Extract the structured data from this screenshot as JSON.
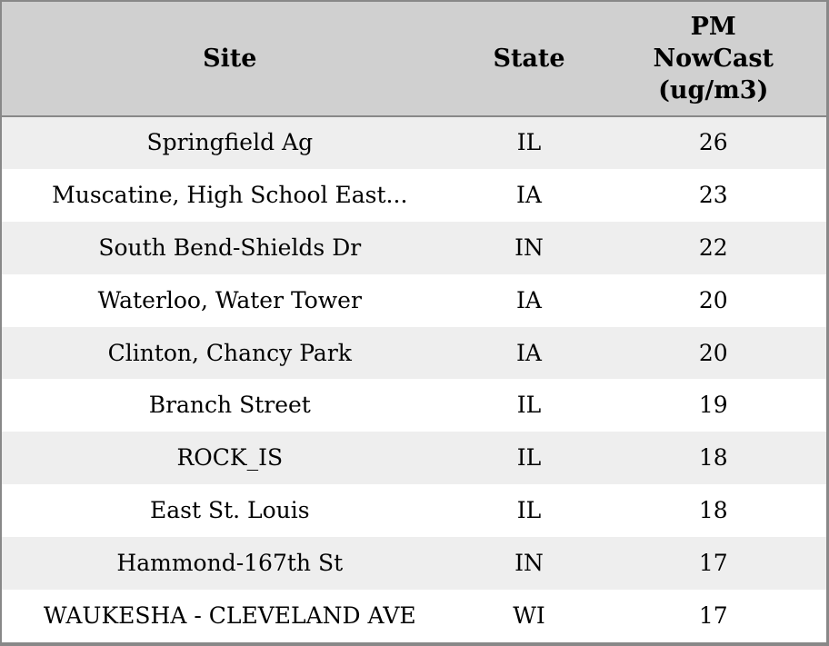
{
  "colors": {
    "header_bg": "#d0d0d0",
    "row_alt_bg": "#eeeeee",
    "row_bg": "#ffffff",
    "border": "#888888",
    "text": "#000000"
  },
  "chart_data": {
    "type": "table",
    "columns": [
      "Site",
      "State",
      "PM NowCast (ug/m3)"
    ],
    "header_display": {
      "site": "Site",
      "state": "State",
      "pm": "PM\nNowCast\n(ug/m3)"
    },
    "rows": [
      {
        "site": "Springfield Ag",
        "state": "IL",
        "value": 26
      },
      {
        "site": "Muscatine, High School East...",
        "state": "IA",
        "value": 23
      },
      {
        "site": "South Bend-Shields Dr",
        "state": "IN",
        "value": 22
      },
      {
        "site": "Waterloo, Water Tower",
        "state": "IA",
        "value": 20
      },
      {
        "site": "Clinton, Chancy Park",
        "state": "IA",
        "value": 20
      },
      {
        "site": "Branch Street",
        "state": "IL",
        "value": 19
      },
      {
        "site": "ROCK_IS",
        "state": "IL",
        "value": 18
      },
      {
        "site": "East St. Louis",
        "state": "IL",
        "value": 18
      },
      {
        "site": "Hammond-167th St",
        "state": "IN",
        "value": 17
      },
      {
        "site": "WAUKESHA - CLEVELAND AVE",
        "state": "WI",
        "value": 17
      }
    ]
  }
}
